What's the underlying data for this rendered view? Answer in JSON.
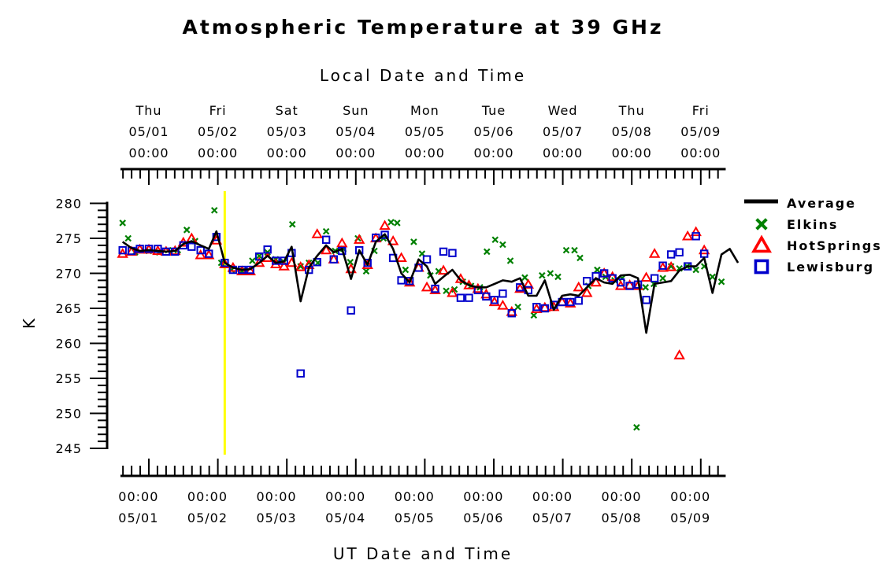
{
  "chart_data": {
    "type": "line",
    "title": "Atmospheric Temperature at 39 GHz",
    "xlabel_top": "Local Date and Time",
    "xlabel_bottom": "UT Date and Time",
    "ylabel": "K",
    "ylim": [
      245,
      280
    ],
    "yticks": [
      245,
      250,
      255,
      260,
      265,
      270,
      275,
      280
    ],
    "xlim": [
      -0.4,
      8.35
    ],
    "top_ticks": [
      {
        "day": "Thu",
        "date": "05/01",
        "time": "00:00"
      },
      {
        "day": "Fri",
        "date": "05/02",
        "time": "00:00"
      },
      {
        "day": "Sat",
        "date": "05/03",
        "time": "00:00"
      },
      {
        "day": "Sun",
        "date": "05/04",
        "time": "00:00"
      },
      {
        "day": "Mon",
        "date": "05/05",
        "time": "00:00"
      },
      {
        "day": "Tue",
        "date": "05/06",
        "time": "00:00"
      },
      {
        "day": "Wed",
        "date": "05/07",
        "time": "00:00"
      },
      {
        "day": "Thu",
        "date": "05/08",
        "time": "00:00"
      },
      {
        "day": "Fri",
        "date": "05/09",
        "time": "00:00"
      }
    ],
    "bottom_ticks": [
      {
        "time": "00:00",
        "date": "05/01"
      },
      {
        "time": "00:00",
        "date": "05/02"
      },
      {
        "time": "00:00",
        "date": "05/03"
      },
      {
        "time": "00:00",
        "date": "05/04"
      },
      {
        "time": "00:00",
        "date": "05/05"
      },
      {
        "time": "00:00",
        "date": "05/06"
      },
      {
        "time": "00:00",
        "date": "05/07"
      },
      {
        "time": "00:00",
        "date": "05/08"
      },
      {
        "time": "00:00",
        "date": "05/09"
      }
    ],
    "marker_line": {
      "x": 1.1,
      "color": "#ffff00"
    },
    "legend_position": "right",
    "series": [
      {
        "name": "Average",
        "style": "line",
        "color": "#000000",
        "points": [
          [
            -0.38,
            274.5
          ],
          [
            -0.25,
            273.6
          ],
          [
            -0.13,
            273.2
          ],
          [
            0.0,
            273.3
          ],
          [
            0.13,
            273.2
          ],
          [
            0.25,
            273.1
          ],
          [
            0.38,
            273.2
          ],
          [
            0.5,
            274.2
          ],
          [
            0.62,
            274.6
          ],
          [
            0.75,
            274.0
          ],
          [
            0.87,
            273.5
          ],
          [
            0.98,
            276.0
          ],
          [
            1.1,
            271.5
          ],
          [
            1.22,
            270.8
          ],
          [
            1.35,
            270.5
          ],
          [
            1.47,
            270.6
          ],
          [
            1.6,
            271.5
          ],
          [
            1.72,
            272.5
          ],
          [
            1.84,
            271.5
          ],
          [
            1.96,
            271.7
          ],
          [
            2.07,
            273.8
          ],
          [
            2.2,
            266.0
          ],
          [
            2.32,
            270.8
          ],
          [
            2.44,
            272.5
          ],
          [
            2.57,
            274.0
          ],
          [
            2.68,
            273.0
          ],
          [
            2.8,
            273.5
          ],
          [
            2.93,
            269.2
          ],
          [
            3.05,
            273.3
          ],
          [
            3.17,
            271.2
          ],
          [
            3.29,
            274.5
          ],
          [
            3.42,
            275.6
          ],
          [
            3.54,
            273.5
          ],
          [
            3.66,
            270.0
          ],
          [
            3.78,
            268.7
          ],
          [
            3.91,
            272.0
          ],
          [
            4.03,
            271.0
          ],
          [
            4.15,
            268.5
          ],
          [
            4.27,
            269.5
          ],
          [
            4.4,
            270.5
          ],
          [
            4.52,
            269.0
          ],
          [
            4.64,
            268.3
          ],
          [
            4.77,
            268.0
          ],
          [
            4.89,
            268.0
          ],
          [
            5.01,
            268.5
          ],
          [
            5.13,
            269.0
          ],
          [
            5.26,
            268.8
          ],
          [
            5.38,
            269.3
          ],
          [
            5.5,
            266.8
          ],
          [
            5.62,
            266.8
          ],
          [
            5.74,
            269.0
          ],
          [
            5.87,
            264.8
          ],
          [
            5.99,
            266.8
          ],
          [
            6.11,
            267.0
          ],
          [
            6.23,
            266.8
          ],
          [
            6.35,
            268.0
          ],
          [
            6.48,
            269.3
          ],
          [
            6.6,
            268.7
          ],
          [
            6.72,
            268.5
          ],
          [
            6.84,
            269.7
          ],
          [
            6.97,
            269.8
          ],
          [
            7.09,
            269.3
          ],
          [
            7.21,
            261.5
          ],
          [
            7.33,
            268.5
          ],
          [
            7.45,
            268.7
          ],
          [
            7.57,
            268.9
          ],
          [
            7.69,
            270.4
          ],
          [
            7.81,
            271.0
          ],
          [
            7.93,
            271.0
          ],
          [
            8.05,
            272.2
          ],
          [
            8.17,
            267.2
          ],
          [
            8.3,
            272.7
          ],
          [
            8.42,
            273.5
          ],
          [
            8.54,
            271.5
          ]
        ]
      },
      {
        "name": "Elkins",
        "style": "x",
        "color": "#008000",
        "points": [
          [
            -0.38,
            277.2
          ],
          [
            -0.3,
            275.0
          ],
          [
            -0.2,
            273.0
          ],
          [
            0.0,
            273.2
          ],
          [
            0.15,
            273.0
          ],
          [
            0.28,
            273.3
          ],
          [
            0.42,
            273.3
          ],
          [
            0.55,
            276.2
          ],
          [
            0.67,
            274.6
          ],
          [
            0.95,
            279.0
          ],
          [
            1.05,
            271.5
          ],
          [
            1.2,
            270.5
          ],
          [
            1.35,
            270.3
          ],
          [
            1.5,
            271.8
          ],
          [
            1.6,
            272.5
          ],
          [
            1.72,
            273.0
          ],
          [
            1.84,
            272.0
          ],
          [
            1.96,
            271.6
          ],
          [
            2.08,
            277.0
          ],
          [
            2.2,
            271.0
          ],
          [
            2.32,
            271.5
          ],
          [
            2.45,
            271.5
          ],
          [
            2.57,
            276.0
          ],
          [
            2.7,
            273.2
          ],
          [
            2.82,
            273.5
          ],
          [
            2.92,
            271.6
          ],
          [
            3.03,
            275.0
          ],
          [
            3.15,
            270.3
          ],
          [
            3.27,
            273.2
          ],
          [
            3.4,
            275.0
          ],
          [
            3.51,
            277.3
          ],
          [
            3.6,
            277.2
          ],
          [
            3.72,
            270.5
          ],
          [
            3.84,
            274.5
          ],
          [
            3.96,
            272.8
          ],
          [
            4.08,
            269.7
          ],
          [
            4.2,
            270.3
          ],
          [
            4.31,
            267.5
          ],
          [
            4.43,
            267.7
          ],
          [
            4.55,
            268.8
          ],
          [
            4.67,
            268.2
          ],
          [
            4.8,
            268.0
          ],
          [
            4.9,
            273.1
          ],
          [
            5.02,
            274.8
          ],
          [
            5.13,
            274.1
          ],
          [
            5.24,
            271.8
          ],
          [
            5.35,
            265.2
          ],
          [
            5.45,
            269.4
          ],
          [
            5.58,
            264.0
          ],
          [
            5.7,
            269.7
          ],
          [
            5.82,
            270.0
          ],
          [
            5.93,
            269.5
          ],
          [
            6.05,
            273.3
          ],
          [
            6.17,
            273.3
          ],
          [
            6.25,
            272.2
          ],
          [
            6.37,
            268.2
          ],
          [
            6.5,
            270.5
          ],
          [
            6.62,
            269.5
          ],
          [
            6.75,
            269.0
          ],
          [
            6.86,
            269.3
          ],
          [
            7.07,
            248.0
          ],
          [
            7.2,
            268.0
          ],
          [
            7.32,
            268.5
          ],
          [
            7.45,
            269.3
          ],
          [
            7.57,
            271.0
          ],
          [
            7.69,
            270.7
          ],
          [
            7.8,
            271.0
          ],
          [
            7.93,
            270.5
          ],
          [
            8.05,
            271.0
          ],
          [
            8.17,
            269.5
          ],
          [
            8.3,
            268.8
          ]
        ]
      },
      {
        "name": "HotSprings",
        "style": "triangle",
        "color": "#ff0000",
        "points": [
          [
            -0.38,
            272.8
          ],
          [
            -0.25,
            273.1
          ],
          [
            -0.13,
            273.4
          ],
          [
            0.0,
            273.4
          ],
          [
            0.13,
            273.2
          ],
          [
            0.25,
            273.1
          ],
          [
            0.38,
            273.2
          ],
          [
            0.5,
            274.4
          ],
          [
            0.62,
            275.0
          ],
          [
            0.75,
            272.6
          ],
          [
            0.87,
            272.6
          ],
          [
            0.98,
            274.7
          ],
          [
            1.1,
            271.3
          ],
          [
            1.22,
            270.8
          ],
          [
            1.35,
            270.3
          ],
          [
            1.47,
            270.3
          ],
          [
            1.6,
            271.5
          ],
          [
            1.72,
            272.2
          ],
          [
            1.84,
            271.3
          ],
          [
            1.96,
            271.0
          ],
          [
            2.07,
            271.5
          ],
          [
            2.2,
            270.9
          ],
          [
            2.32,
            271.2
          ],
          [
            2.44,
            275.6
          ],
          [
            2.57,
            273.3
          ],
          [
            2.68,
            272.0
          ],
          [
            2.8,
            274.3
          ],
          [
            2.93,
            270.6
          ],
          [
            3.05,
            274.8
          ],
          [
            3.17,
            271.2
          ],
          [
            3.29,
            275.0
          ],
          [
            3.42,
            276.8
          ],
          [
            3.54,
            274.6
          ],
          [
            3.66,
            272.2
          ],
          [
            3.78,
            268.7
          ],
          [
            3.91,
            270.8
          ],
          [
            4.03,
            268.0
          ],
          [
            4.15,
            267.6
          ],
          [
            4.27,
            270.4
          ],
          [
            4.4,
            267.2
          ],
          [
            4.52,
            269.2
          ],
          [
            4.64,
            268.3
          ],
          [
            4.77,
            267.8
          ],
          [
            4.89,
            267.0
          ],
          [
            5.01,
            265.9
          ],
          [
            5.13,
            265.4
          ],
          [
            5.26,
            264.5
          ],
          [
            5.38,
            267.8
          ],
          [
            5.5,
            268.4
          ],
          [
            5.62,
            264.9
          ],
          [
            5.74,
            265.1
          ],
          [
            5.87,
            265.2
          ],
          [
            5.99,
            265.9
          ],
          [
            6.11,
            265.7
          ],
          [
            6.23,
            268.0
          ],
          [
            6.35,
            267.2
          ],
          [
            6.48,
            268.7
          ],
          [
            6.6,
            270.0
          ],
          [
            6.72,
            269.5
          ],
          [
            6.84,
            268.2
          ],
          [
            6.97,
            268.3
          ],
          [
            7.09,
            268.2
          ],
          [
            7.21,
            269.4
          ],
          [
            7.33,
            272.8
          ],
          [
            7.45,
            270.8
          ],
          [
            7.57,
            270.9
          ],
          [
            7.69,
            258.3
          ],
          [
            7.81,
            275.3
          ],
          [
            7.93,
            275.9
          ],
          [
            8.05,
            273.3
          ]
        ]
      },
      {
        "name": "Lewisburg",
        "style": "square",
        "color": "#0000cc",
        "points": [
          [
            -0.38,
            273.3
          ],
          [
            -0.25,
            273.2
          ],
          [
            -0.13,
            273.5
          ],
          [
            0.0,
            273.5
          ],
          [
            0.13,
            273.5
          ],
          [
            0.25,
            273.1
          ],
          [
            0.38,
            273.1
          ],
          [
            0.5,
            274.0
          ],
          [
            0.62,
            273.8
          ],
          [
            0.75,
            273.3
          ],
          [
            0.87,
            272.8
          ],
          [
            0.98,
            275.2
          ],
          [
            1.1,
            271.5
          ],
          [
            1.22,
            270.5
          ],
          [
            1.35,
            270.5
          ],
          [
            1.47,
            270.5
          ],
          [
            1.6,
            272.4
          ],
          [
            1.72,
            273.4
          ],
          [
            1.84,
            271.8
          ],
          [
            1.96,
            271.8
          ],
          [
            2.07,
            272.9
          ],
          [
            2.2,
            255.7
          ],
          [
            2.32,
            270.5
          ],
          [
            2.44,
            271.6
          ],
          [
            2.57,
            274.8
          ],
          [
            2.68,
            272.0
          ],
          [
            2.8,
            273.2
          ],
          [
            2.93,
            264.7
          ],
          [
            3.05,
            273.3
          ],
          [
            3.17,
            271.5
          ],
          [
            3.29,
            275.1
          ],
          [
            3.42,
            275.5
          ],
          [
            3.54,
            272.2
          ],
          [
            3.66,
            269.0
          ],
          [
            3.78,
            268.9
          ],
          [
            3.91,
            270.8
          ],
          [
            4.03,
            272.0
          ],
          [
            4.15,
            267.8
          ],
          [
            4.27,
            273.1
          ],
          [
            4.4,
            272.9
          ],
          [
            4.52,
            266.5
          ],
          [
            4.64,
            266.5
          ],
          [
            4.77,
            267.6
          ],
          [
            4.89,
            266.7
          ],
          [
            5.01,
            266.2
          ],
          [
            5.13,
            267.1
          ],
          [
            5.26,
            264.3
          ],
          [
            5.38,
            268.0
          ],
          [
            5.5,
            267.6
          ],
          [
            5.62,
            265.2
          ],
          [
            5.74,
            265.0
          ],
          [
            5.87,
            265.5
          ],
          [
            5.99,
            265.9
          ],
          [
            6.11,
            265.9
          ],
          [
            6.23,
            266.1
          ],
          [
            6.35,
            268.9
          ],
          [
            6.48,
            269.6
          ],
          [
            6.6,
            270.0
          ],
          [
            6.72,
            269.3
          ],
          [
            6.84,
            268.7
          ],
          [
            6.97,
            268.2
          ],
          [
            7.09,
            268.4
          ],
          [
            7.21,
            266.2
          ],
          [
            7.33,
            269.3
          ],
          [
            7.45,
            271.1
          ],
          [
            7.57,
            272.7
          ],
          [
            7.69,
            273.0
          ],
          [
            7.81,
            271.0
          ],
          [
            7.93,
            275.3
          ],
          [
            8.05,
            272.8
          ]
        ]
      }
    ]
  }
}
